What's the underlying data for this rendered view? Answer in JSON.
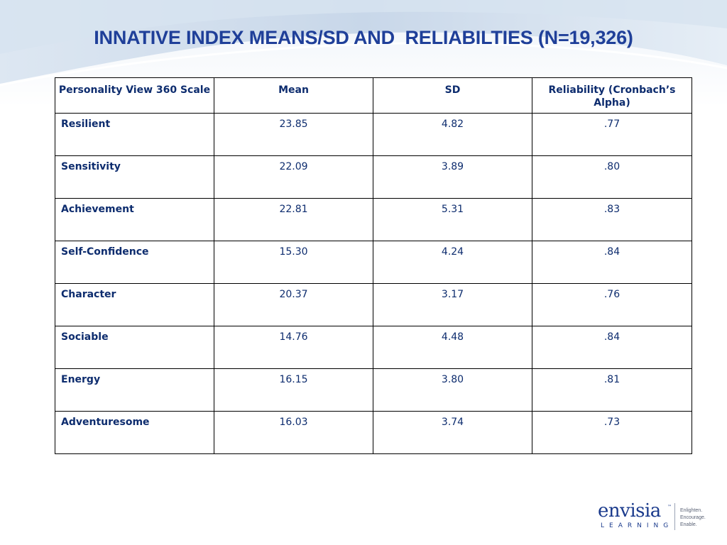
{
  "slide": {
    "title": "INNATIVE INDEX MEANS/SD AND  RELIABILTIES (N=19,326)"
  },
  "table": {
    "headers": [
      "Personality View 360 Scale",
      "Mean",
      "SD",
      "Reliability (Cronbach’s Alpha)"
    ],
    "rows": [
      {
        "scale": "Resilient",
        "mean": "23.85",
        "sd": "4.82",
        "reliability": ".77"
      },
      {
        "scale": "Sensitivity",
        "mean": "22.09",
        "sd": "3.89",
        "reliability": ".80"
      },
      {
        "scale": "Achievement",
        "mean": "22.81",
        "sd": "5.31",
        "reliability": ".83"
      },
      {
        "scale": "Self-Confidence",
        "mean": "15.30",
        "sd": "4.24",
        "reliability": ".84"
      },
      {
        "scale": "Character",
        "mean": "20.37",
        "sd": "3.17",
        "reliability": ".76"
      },
      {
        "scale": "Sociable",
        "mean": "14.76",
        "sd": "4.48",
        "reliability": ".84"
      },
      {
        "scale": "Energy",
        "mean": "16.15",
        "sd": "3.80",
        "reliability": ".81"
      },
      {
        "scale": "Adventuresome",
        "mean": "16.03",
        "sd": "3.74",
        "reliability": ".73"
      }
    ]
  },
  "logo": {
    "brand": "envisia",
    "trademark": "™",
    "sub": "LEARNING",
    "tagline": [
      "Enlighten.",
      "Encourage.",
      "Enable."
    ]
  },
  "colors": {
    "title": "#1f3f99",
    "text": "#0d2c6e",
    "border": "#000000",
    "header_swoosh": "#c9d8ea"
  }
}
